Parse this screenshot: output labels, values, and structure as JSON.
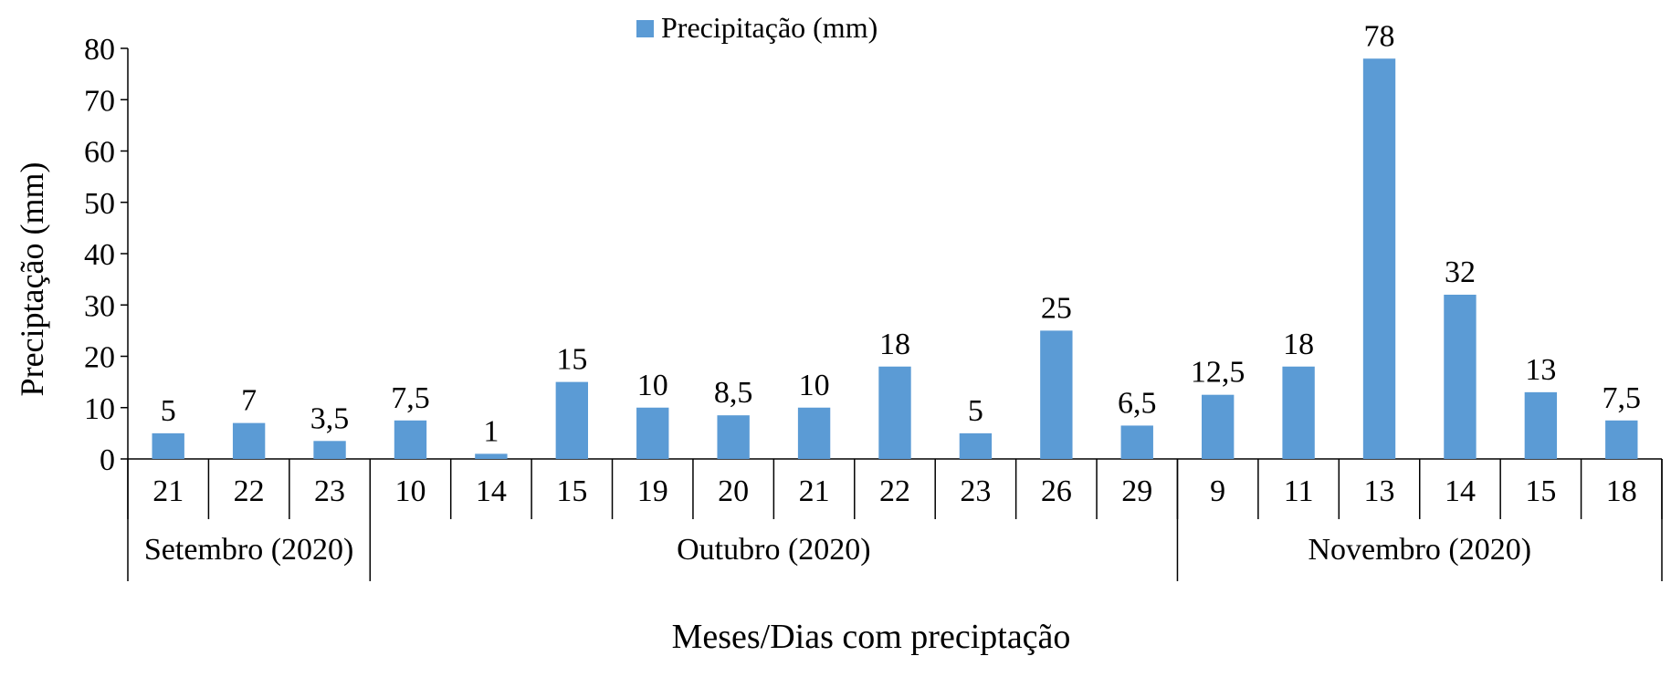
{
  "chart_data": {
    "type": "bar",
    "legend": {
      "label": "Precipitação (mm)",
      "position": "top"
    },
    "ylabel": "Preciptação (mm)",
    "xlabel": "Meses/Dias com preciptação",
    "ylim": [
      0,
      80
    ],
    "yticks": [
      0,
      10,
      20,
      30,
      40,
      50,
      60,
      70,
      80
    ],
    "grid": false,
    "color": "#5b9bd5",
    "categories": [
      "21",
      "22",
      "23",
      "10",
      "14",
      "15",
      "19",
      "20",
      "21",
      "22",
      "23",
      "26",
      "29",
      "9",
      "11",
      "13",
      "14",
      "15",
      "18"
    ],
    "values": [
      5,
      7,
      3.5,
      7.5,
      1,
      15,
      10,
      8.5,
      10,
      18,
      5,
      25,
      6.5,
      12.5,
      18,
      78,
      32,
      13,
      7.5
    ],
    "data_labels": [
      "5",
      "7",
      "3,5",
      "7,5",
      "1",
      "15",
      "10",
      "8,5",
      "10",
      "18",
      "5",
      "25",
      "6,5",
      "12,5",
      "18",
      "78",
      "32",
      "13",
      "7,5"
    ],
    "groups": [
      {
        "label": "Setembro (2020)",
        "count": 3
      },
      {
        "label": "Outubro (2020)",
        "count": 10
      },
      {
        "label": "Novembro (2020)",
        "count": 6
      }
    ]
  }
}
